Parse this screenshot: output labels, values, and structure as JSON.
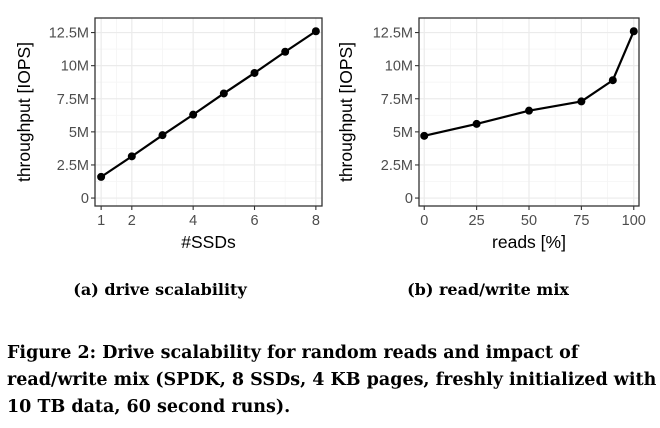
{
  "chart_data": [
    {
      "type": "line",
      "xlabel": "#SSDs",
      "ylabel": "throughput [IOPS]",
      "x": [
        1,
        2,
        3,
        4,
        5,
        6,
        7,
        8
      ],
      "series": [
        {
          "values": [
            1.6,
            3.15,
            4.75,
            6.3,
            7.9,
            9.45,
            11.05,
            12.6
          ]
        }
      ],
      "xlim": [
        0.8,
        8.2
      ],
      "ylim": [
        -0.6,
        13.6
      ],
      "xticks": [
        1,
        2,
        4,
        6,
        8
      ],
      "xtick_labels": [
        "1",
        "2",
        "4",
        "6",
        "8"
      ],
      "yticks": [
        0,
        2.5,
        5,
        7.5,
        10,
        12.5
      ],
      "ytick_labels": [
        "0",
        "2.5M",
        "5M",
        "7.5M",
        "10M",
        "12.5M"
      ],
      "y_unit": "M IOPS",
      "grid": true,
      "legend": "none"
    },
    {
      "type": "line",
      "xlabel": "reads [%]",
      "ylabel": "throughput [IOPS]",
      "x": [
        0,
        25,
        50,
        75,
        90,
        100
      ],
      "series": [
        {
          "values": [
            4.7,
            5.6,
            6.6,
            7.3,
            8.9,
            12.6
          ]
        }
      ],
      "xlim": [
        -2.5,
        102.5
      ],
      "ylim": [
        -0.6,
        13.6
      ],
      "xticks": [
        0,
        25,
        50,
        75,
        100
      ],
      "xtick_labels": [
        "0",
        "25",
        "50",
        "75",
        "100"
      ],
      "yticks": [
        0,
        2.5,
        5,
        7.5,
        10,
        12.5
      ],
      "ytick_labels": [
        "0",
        "2.5M",
        "5M",
        "7.5M",
        "10M",
        "12.5M"
      ],
      "y_unit": "M IOPS",
      "grid": true,
      "legend": "none"
    }
  ],
  "subcaptions": [
    "(a) drive scalability",
    "(b) read/write mix"
  ],
  "caption": "Figure 2: Drive scalability for random reads and impact of read/write mix (SPDK, 8 SSDs, 4 KB pages, freshly initialized with 10 TB data, 60 second runs).",
  "colors": {
    "line": "#000000",
    "grid": "#ebebeb",
    "frame": "#333333",
    "tick_label": "#4d4d4d"
  }
}
